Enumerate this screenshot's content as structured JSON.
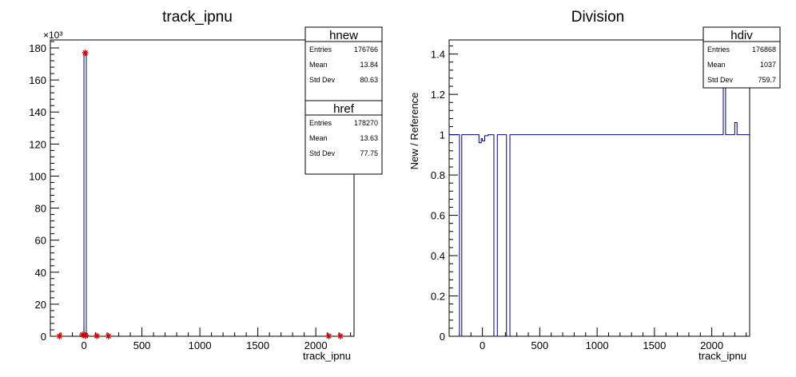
{
  "chart_data": [
    {
      "type": "histogram",
      "title": "track_ipnu",
      "xlabel": "track_ipnu",
      "ylabel": "",
      "y_exponent": "×10³",
      "xlim": [
        -290,
        2330
      ],
      "ylim": [
        0,
        185
      ],
      "xticks": [
        0,
        500,
        1000,
        1500,
        2000
      ],
      "xtick_labels": [
        "0",
        "500",
        "1000",
        "1500",
        "2000"
      ],
      "yticks": [
        0,
        20,
        40,
        60,
        80,
        100,
        120,
        140,
        160,
        180
      ],
      "ytick_labels": [
        "0",
        "20",
        "40",
        "60",
        "80",
        "100",
        "120",
        "140",
        "160",
        "180"
      ],
      "series": [
        {
          "name": "hnew",
          "style": "blue histogram outline",
          "color": "#00007f",
          "bins": [
            {
              "x0": 0,
              "x1": 20,
              "y": 176.8
            }
          ]
        },
        {
          "name": "href",
          "style": "red star markers",
          "color": "#cc0000",
          "points": [
            {
              "x": -211,
              "y": 0.1
            },
            {
              "x": -13,
              "y": 0.9
            },
            {
              "x": 11,
              "y": 177.0
            },
            {
              "x": 13,
              "y": 0.6
            },
            {
              "x": 14,
              "y": 0.3
            },
            {
              "x": 111,
              "y": 0.2
            },
            {
              "x": 211,
              "y": 0.1
            },
            {
              "x": 2112,
              "y": 0.1
            },
            {
              "x": 2212,
              "y": 0.1
            }
          ]
        }
      ],
      "stats_boxes": [
        {
          "name": "hnew",
          "rows": [
            [
              "Entries",
              "176766"
            ],
            [
              "Mean",
              "13.84"
            ],
            [
              "Std Dev",
              "80.63"
            ]
          ]
        },
        {
          "name": "href",
          "rows": [
            [
              "Entries",
              "178270"
            ],
            [
              "Mean",
              "13.63"
            ],
            [
              "Std Dev",
              "77.75"
            ]
          ]
        }
      ]
    },
    {
      "type": "histogram",
      "title": "Division",
      "xlabel": "track_ipnu",
      "ylabel": "New / Reference",
      "xlim": [
        -290,
        2330
      ],
      "ylim": [
        0,
        1.47
      ],
      "xticks": [
        0,
        500,
        1000,
        1500,
        2000
      ],
      "xtick_labels": [
        "0",
        "500",
        "1000",
        "1500",
        "2000"
      ],
      "yticks": [
        0,
        0.2,
        0.4,
        0.6,
        0.8,
        1,
        1.2,
        1.4
      ],
      "ytick_labels": [
        "0",
        "0.2",
        "0.4",
        "0.6",
        "0.8",
        "1",
        "1.2",
        "1.4"
      ],
      "series": [
        {
          "name": "hdiv",
          "style": "blue histogram outline",
          "color": "#00007f",
          "steps": [
            {
              "x0": -290,
              "x1": -200,
              "y": 1.0
            },
            {
              "x0": -200,
              "x1": -180,
              "y": 0
            },
            {
              "x0": -180,
              "x1": -30,
              "y": 1.0
            },
            {
              "x0": -30,
              "x1": -10,
              "y": 0.96
            },
            {
              "x0": -10,
              "x1": 0,
              "y": 0.98
            },
            {
              "x0": 0,
              "x1": 20,
              "y": 0.97
            },
            {
              "x0": 20,
              "x1": 50,
              "y": 0.995
            },
            {
              "x0": 50,
              "x1": 100,
              "y": 1.0
            },
            {
              "x0": 100,
              "x1": 130,
              "y": 0
            },
            {
              "x0": 130,
              "x1": 210,
              "y": 1.0
            },
            {
              "x0": 210,
              "x1": 240,
              "y": 0
            },
            {
              "x0": 240,
              "x1": 2100,
              "y": 1.0
            },
            {
              "x0": 2100,
              "x1": 2120,
              "y": 1.5
            },
            {
              "x0": 2120,
              "x1": 2200,
              "y": 1.0
            },
            {
              "x0": 2200,
              "x1": 2220,
              "y": 1.06
            },
            {
              "x0": 2220,
              "x1": 2330,
              "y": 1.0
            }
          ]
        }
      ],
      "stats_boxes": [
        {
          "name": "hdiv",
          "rows": [
            [
              "Entries",
              "176868"
            ],
            [
              "Mean",
              "1037"
            ],
            [
              "Std Dev",
              "759.7"
            ]
          ]
        }
      ]
    }
  ]
}
